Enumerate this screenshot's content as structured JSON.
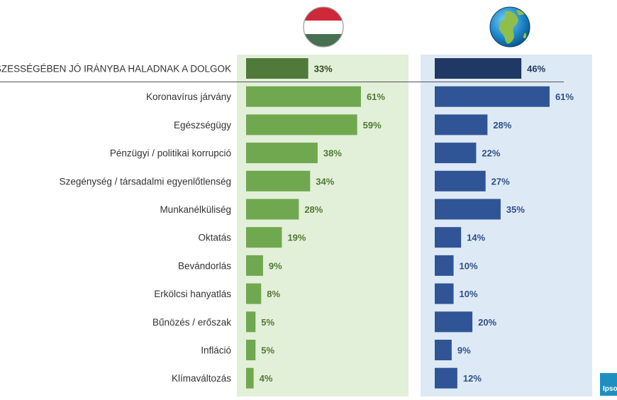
{
  "chart_data": {
    "type": "bar",
    "orientation": "horizontal",
    "categories": [
      "ÖSSZESSÉGÉBEN JÓ IRÁNYBA HALADNAK A DOLGOK",
      "Koronavírus járvány",
      "Egészségügy",
      "Pénzügyi / politikai korrupció",
      "Szegénység / társadalmi egyenlőtlenség",
      "Munkanélküliség",
      "Oktatás",
      "Bevándorlás",
      "Erkölcsi hanyatlás",
      "Bűnözés / erőszak",
      "Infláció",
      "Klímaváltozás"
    ],
    "series": [
      {
        "values": [
          33,
          61,
          59,
          38,
          34,
          28,
          19,
          9,
          8,
          5,
          5,
          4
        ],
        "labels": [
          "33%",
          "61%",
          "59%",
          "38%",
          "34%",
          "28%",
          "19%",
          "9%",
          "8%",
          "5%",
          "5%",
          "4%"
        ],
        "color": "#70a84f",
        "highlight_color": "#4f7a3a",
        "label_color": "#4f7a32",
        "panel_color": "#e2efd9"
      },
      {
        "values": [
          46,
          61,
          28,
          22,
          27,
          35,
          14,
          10,
          10,
          20,
          9,
          12
        ],
        "labels": [
          "46%",
          "61%",
          "28%",
          "22%",
          "27%",
          "35%",
          "14%",
          "10%",
          "10%",
          "20%",
          "9%",
          "12%"
        ],
        "color": "#2f5597",
        "highlight_color": "#1f3864",
        "label_color": "#2f4f8a",
        "panel_color": "#dde9f5"
      }
    ],
    "unit": "%",
    "grid": false,
    "legend": "none",
    "header_icons": [
      "hungary-flag-icon",
      "globe-icon"
    ]
  },
  "logo": {
    "text": "Ipsos",
    "icon": "ipsos-logo-icon",
    "color": "#1f8fc1"
  }
}
